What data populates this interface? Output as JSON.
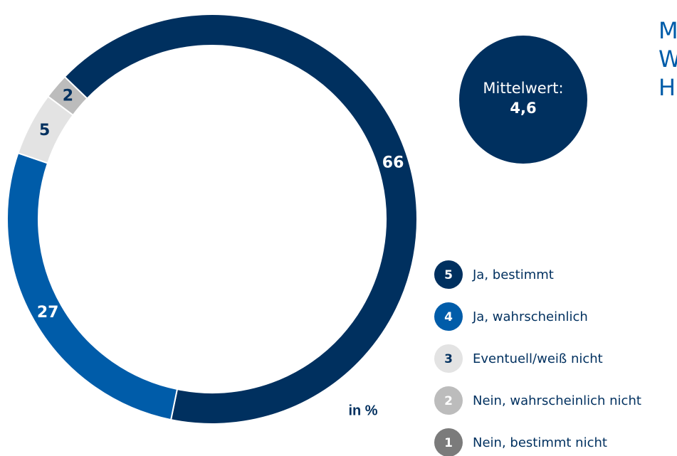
{
  "chart_data": {
    "type": "donut",
    "title_lines": [
      "M",
      "W",
      "H"
    ],
    "categories": [
      "Ja, bestimmt",
      "Ja, wahrscheinlich",
      "Eventuell/weiß nicht",
      "Nein, wahrscheinlich nicht",
      "Nein, bestimmt nicht"
    ],
    "category_numbers": [
      "5",
      "4",
      "3",
      "2",
      "1"
    ],
    "colors": [
      "#00305f",
      "#005ca9",
      "#e3e3e3",
      "#bcbcbc",
      "#7b7b7b"
    ],
    "values": [
      66,
      27,
      5,
      2,
      null
    ],
    "unit_label": "in %",
    "mean_label": "Mittelwert:",
    "mean_value_label": "4,6"
  }
}
